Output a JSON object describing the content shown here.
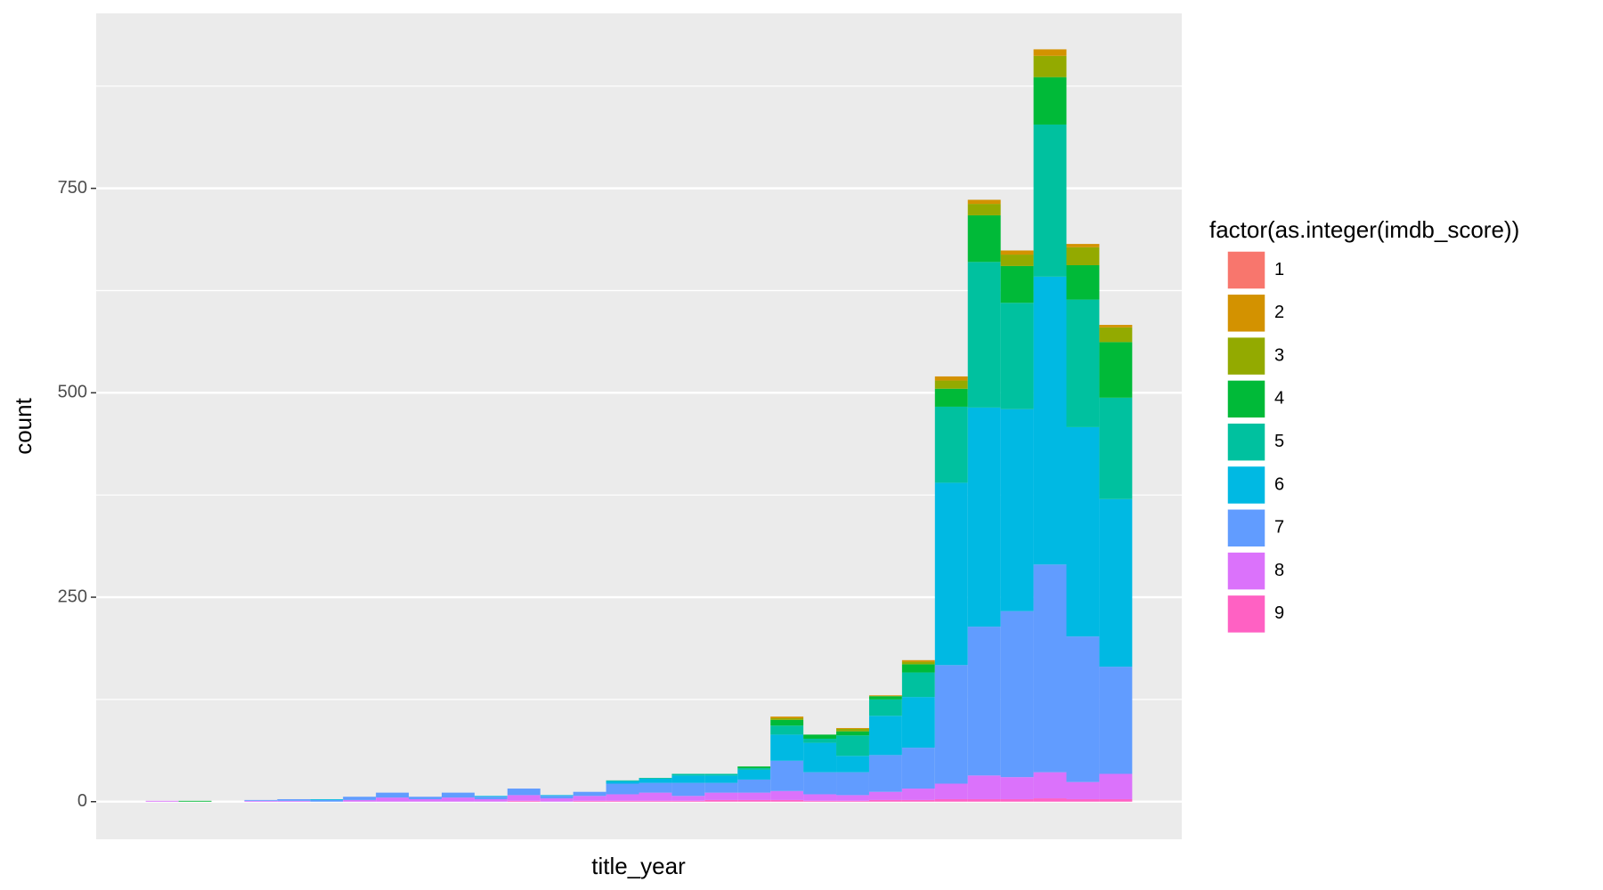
{
  "chart_data": {
    "type": "histogram",
    "x_label": "title_year",
    "y_label": "count",
    "legend_title": "factor(as.integer(imdb_score))",
    "stacked": true,
    "bins": [
      1914.3,
      1917.75,
      1921.2,
      1924.65,
      1928.1,
      1931.55,
      1935,
      1938.45,
      1941.9,
      1945.35,
      1948.8,
      1952.25,
      1955.7,
      1959.15,
      1962.6,
      1966.05,
      1969.5,
      1972.95,
      1976.4,
      1979.85,
      1983.3,
      1986.75,
      1990.2,
      1993.65,
      1997.1,
      2000.55,
      2004,
      2007.45,
      2010.9,
      2014.35,
      2017.8
    ],
    "xlim": [
      1909.1,
      2023.0
    ],
    "ylim": [
      -46,
      964
    ],
    "yticks": [
      0,
      250,
      500,
      750
    ],
    "minor_yticks": [
      125,
      375,
      625,
      875
    ],
    "grid": true,
    "legend": "right",
    "series": [
      {
        "name": "1",
        "color": "#F8766D",
        "values": [
          0,
          0,
          0,
          0,
          0,
          0,
          0,
          0,
          0,
          0,
          0,
          0,
          0,
          0,
          0,
          0,
          0,
          0,
          0,
          0,
          0,
          0,
          0,
          0,
          0,
          0,
          0,
          0,
          0,
          0
        ]
      },
      {
        "name": "2",
        "color": "#D39200",
        "values": [
          0,
          0,
          0,
          0,
          0,
          0,
          0,
          0,
          0,
          0,
          0,
          0,
          0,
          0,
          0,
          0,
          0,
          0,
          0,
          2,
          0,
          1,
          1,
          2,
          5,
          5,
          5,
          8,
          4,
          3
        ]
      },
      {
        "name": "3",
        "color": "#93AA00",
        "values": [
          0,
          0,
          0,
          0,
          0,
          0,
          0,
          0,
          0,
          0,
          0,
          0,
          0,
          0,
          0,
          0,
          0,
          0,
          0,
          2,
          0,
          3,
          0,
          3,
          10,
          14,
          14,
          26,
          22,
          18
        ]
      },
      {
        "name": "4",
        "color": "#00BA38",
        "values": [
          0,
          1,
          0,
          0,
          0,
          0,
          0,
          0,
          0,
          0,
          0,
          0,
          0,
          0,
          0,
          0,
          0,
          0,
          2,
          7,
          5,
          5,
          4,
          10,
          22,
          57,
          45,
          58,
          42,
          68
        ]
      },
      {
        "name": "5",
        "color": "#00C19F",
        "values": [
          0,
          0,
          0,
          0,
          0,
          0,
          0,
          0,
          0,
          0,
          0,
          0,
          0,
          0,
          1,
          1,
          2,
          2,
          2,
          11,
          5,
          25,
          20,
          30,
          93,
          178,
          130,
          186,
          156,
          124
        ]
      },
      {
        "name": "6",
        "color": "#00B9E3",
        "values": [
          0,
          0,
          0,
          0,
          0,
          1,
          0,
          0,
          0,
          0,
          1,
          0,
          1,
          0,
          3,
          5,
          9,
          9,
          12,
          32,
          36,
          20,
          48,
          62,
          223,
          268,
          247,
          352,
          256,
          205
        ]
      },
      {
        "name": "7",
        "color": "#619CFF",
        "values": [
          0,
          0,
          0,
          1,
          2,
          2,
          4,
          6,
          3,
          6,
          3,
          8,
          3,
          5,
          13,
          12,
          16,
          12,
          16,
          37,
          27,
          28,
          45,
          50,
          145,
          182,
          203,
          254,
          178,
          131
        ]
      },
      {
        "name": "8",
        "color": "#DB72FB",
        "values": [
          1,
          0,
          0,
          1,
          1,
          0,
          2,
          5,
          3,
          5,
          3,
          7,
          4,
          6,
          8,
          10,
          6,
          9,
          9,
          11,
          8,
          7,
          10,
          14,
          19,
          29,
          27,
          32,
          21,
          31
        ]
      },
      {
        "name": "9",
        "color": "#FF61C3",
        "values": [
          0,
          0,
          0,
          0,
          0,
          0,
          0,
          0,
          0,
          0,
          0,
          1,
          0,
          1,
          1,
          1,
          1,
          2,
          2,
          2,
          1,
          1,
          2,
          2,
          3,
          3,
          3,
          4,
          3,
          3
        ]
      }
    ]
  }
}
